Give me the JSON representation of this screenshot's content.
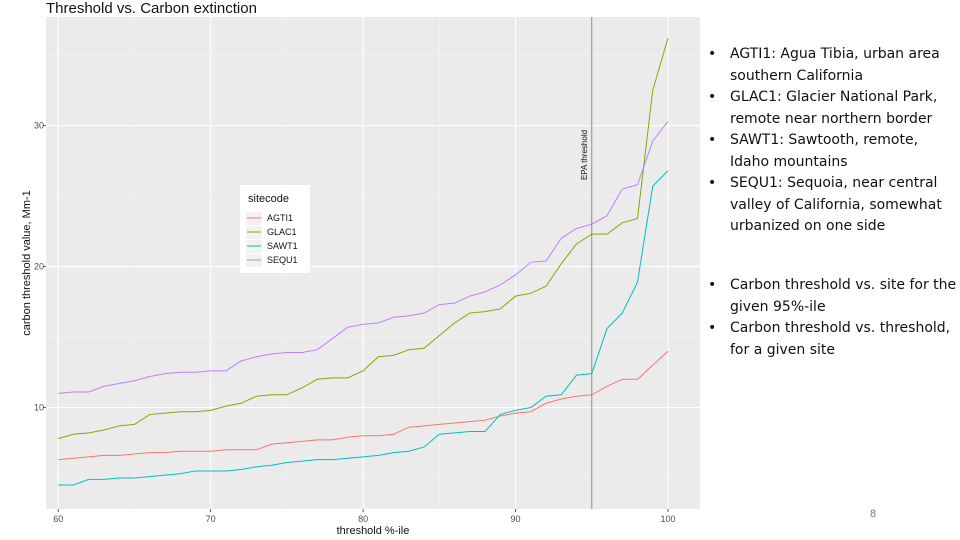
{
  "slide": {
    "page_number": "8",
    "bullets_group_1": [
      "AGTI1:  Agua Tibia, urban area southern California",
      "GLAC1:  Glacier National Park, remote near northern border",
      "SAWT1:  Sawtooth, remote, Idaho mountains",
      "SEQU1:  Sequoia, near central valley of California, somewhat urbanized on one side"
    ],
    "bullets_group_2": [
      "Carbon threshold vs. site for the given 95%-ile",
      "Carbon threshold vs. threshold, for a given site"
    ]
  },
  "chart_data": {
    "type": "line",
    "title": "Threshold vs. Carbon extinction",
    "xlabel": "threshold %-ile",
    "ylabel": "carbon threshold value, Mm-1",
    "xlim": [
      59.2,
      102.1
    ],
    "ylim": [
      2.8,
      37.7
    ],
    "xticks": [
      60,
      70,
      80,
      90,
      100
    ],
    "yticks": [
      10,
      20,
      30
    ],
    "grid": true,
    "legend": {
      "title": "sitecode",
      "placement": "inside top-left"
    },
    "vline": {
      "x": 95,
      "label": "EPA threshold"
    },
    "x": [
      60,
      61,
      62,
      63,
      64,
      65,
      66,
      67,
      68,
      69,
      70,
      71,
      72,
      73,
      74,
      75,
      76,
      77,
      78,
      79,
      80,
      81,
      82,
      83,
      84,
      85,
      86,
      87,
      88,
      89,
      90,
      91,
      92,
      93,
      94,
      95,
      96,
      97,
      98,
      99,
      100
    ],
    "series": [
      {
        "name": "AGTI1",
        "color": "#F8766D",
        "values": [
          6.3,
          6.4,
          6.5,
          6.6,
          6.6,
          6.7,
          6.8,
          6.8,
          6.9,
          6.9,
          6.9,
          7.0,
          7.0,
          7.0,
          7.4,
          7.5,
          7.6,
          7.7,
          7.7,
          7.9,
          8.0,
          8.0,
          8.1,
          8.6,
          8.7,
          8.8,
          8.9,
          9.0,
          9.1,
          9.4,
          9.6,
          9.7,
          10.3,
          10.6,
          10.8,
          10.9,
          11.5,
          12.0,
          12.0,
          13.0,
          14.0
        ]
      },
      {
        "name": "GLAC1",
        "color": "#7CAE00",
        "values": [
          7.8,
          8.1,
          8.2,
          8.4,
          8.7,
          8.8,
          9.5,
          9.6,
          9.7,
          9.7,
          9.8,
          10.1,
          10.3,
          10.8,
          10.9,
          10.9,
          11.4,
          12.0,
          12.1,
          12.1,
          12.6,
          13.6,
          13.7,
          14.1,
          14.2,
          15.1,
          16.0,
          16.7,
          16.8,
          17.0,
          17.9,
          18.1,
          18.6,
          20.2,
          21.6,
          22.3,
          22.3,
          23.1,
          23.4,
          32.5,
          36.2
        ]
      },
      {
        "name": "SAWT1",
        "color": "#00BFC4",
        "values": [
          4.5,
          4.5,
          4.9,
          4.9,
          5.0,
          5.0,
          5.1,
          5.2,
          5.3,
          5.5,
          5.5,
          5.5,
          5.6,
          5.8,
          5.9,
          6.1,
          6.2,
          6.3,
          6.3,
          6.4,
          6.5,
          6.6,
          6.8,
          6.9,
          7.2,
          8.1,
          8.2,
          8.3,
          8.3,
          9.5,
          9.8,
          10.0,
          10.8,
          10.9,
          12.3,
          12.4,
          15.6,
          16.7,
          18.9,
          25.7,
          26.8
        ]
      },
      {
        "name": "SEQU1",
        "color": "#C77CFF",
        "values": [
          11.0,
          11.1,
          11.1,
          11.5,
          11.7,
          11.9,
          12.2,
          12.4,
          12.5,
          12.5,
          12.6,
          12.6,
          13.3,
          13.6,
          13.8,
          13.9,
          13.9,
          14.1,
          14.9,
          15.7,
          15.9,
          16.0,
          16.4,
          16.5,
          16.7,
          17.3,
          17.4,
          17.9,
          18.2,
          18.7,
          19.4,
          20.3,
          20.4,
          22.0,
          22.7,
          23.0,
          23.6,
          25.5,
          25.8,
          28.9,
          30.3
        ]
      }
    ]
  }
}
